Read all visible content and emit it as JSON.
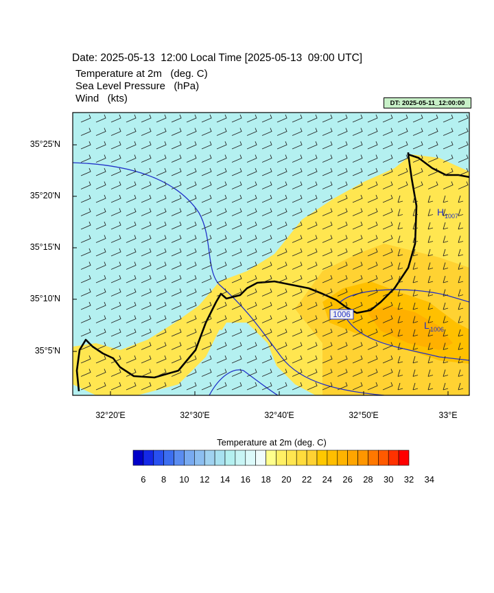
{
  "header": {
    "date_line": "Date: 2025-05-13  12:00 Local Time [2025-05-13  09:00 UTC]",
    "variables": [
      "Temperature at 2m   (deg. C)",
      "Sea Level Pressure   (hPa)",
      "Wind   (kts)"
    ],
    "dt_label": "DT: 2025-05-11_12:00:00"
  },
  "map": {
    "lat_labels": [
      "35°25'N",
      "35°20'N",
      "35°15'N",
      "35°10'N",
      "35°5'N"
    ],
    "lon_labels": [
      "32°20'E",
      "32°30'E",
      "32°40'E",
      "32°50'E",
      "33°E"
    ],
    "pressure_labels": {
      "contour": "1006",
      "high": "H",
      "high_value": "1007",
      "low": "L",
      "low_value": "1006"
    },
    "colors": {
      "sea": "#b4f0f0",
      "land_warm": "#ffe650",
      "land_hot": "#ffc800",
      "land_hotter": "#ffb000",
      "isobar": "#2030c8",
      "coast": "#000000"
    }
  },
  "colorbar": {
    "title": "Temperature at 2m  (deg. C)",
    "labels": [
      "6",
      "8",
      "10",
      "12",
      "14",
      "16",
      "18",
      "20",
      "22",
      "24",
      "26",
      "28",
      "30",
      "32",
      "34"
    ],
    "colors": [
      "#0000c8",
      "#1428e6",
      "#2850f0",
      "#3c6ef0",
      "#5a8cf0",
      "#78aaf0",
      "#8cbef0",
      "#a0d2f0",
      "#a8e1f0",
      "#b4f0f0",
      "#c8f5f5",
      "#dcfafa",
      "#f0fcfc",
      "#ffff8c",
      "#fff064",
      "#ffe650",
      "#ffdc3c",
      "#ffd232",
      "#ffc800",
      "#ffbe00",
      "#ffb400",
      "#ffa500",
      "#ff9600",
      "#ff7800",
      "#ff5a00",
      "#ff3200",
      "#ff0000"
    ]
  }
}
